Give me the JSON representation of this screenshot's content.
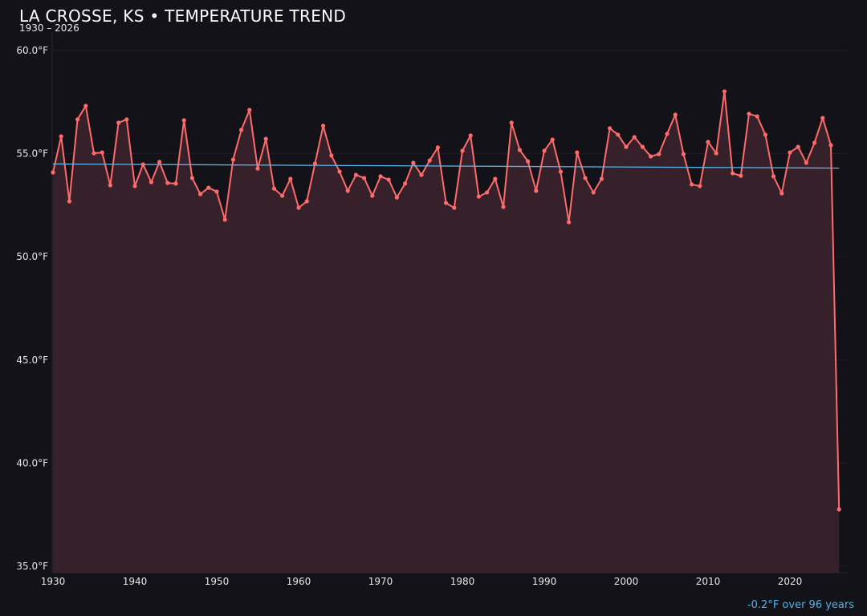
{
  "chart_data": {
    "type": "line",
    "title": "LA CROSSE, KS • TEMPERATURE TREND",
    "subtitle": "1930 – 2026",
    "xlabel": "",
    "ylabel": "",
    "xlim": [
      1930,
      2027
    ],
    "ylim": [
      34.7,
      60.9
    ],
    "grid": true,
    "x_ticks": [
      "1930",
      "1940",
      "1950",
      "1960",
      "1970",
      "1980",
      "1990",
      "2000",
      "2010",
      "2020"
    ],
    "y_ticks": [
      "35.0°F",
      "40.0°F",
      "45.0°F",
      "50.0°F",
      "55.0°F",
      "60.0°F"
    ],
    "y_tick_values": [
      35,
      40,
      45,
      50,
      55,
      60
    ],
    "series": [
      {
        "x_start": 1930,
        "color": "#ff6b6b",
        "fill": "#36202a",
        "values": [
          54.09,
          55.84,
          52.69,
          56.66,
          57.32,
          55.02,
          55.06,
          53.47,
          56.5,
          56.66,
          53.43,
          54.48,
          53.62,
          54.6,
          53.58,
          53.55,
          56.62,
          53.82,
          53.04,
          53.35,
          53.16,
          51.8,
          54.71,
          56.15,
          57.12,
          54.28,
          55.72,
          53.31,
          52.96,
          53.78,
          52.38,
          52.69,
          54.52,
          56.35,
          54.91,
          54.13,
          53.2,
          53.97,
          53.82,
          52.96,
          53.9,
          53.74,
          52.88,
          53.55,
          54.56,
          53.97,
          54.67,
          55.3,
          52.61,
          52.38,
          55.14,
          55.88,
          52.92,
          53.12,
          53.78,
          52.42,
          56.5,
          55.18,
          54.63,
          53.2,
          55.14,
          55.68,
          54.13,
          51.68,
          55.06,
          53.82,
          53.12,
          53.78,
          56.23,
          55.92,
          55.33,
          55.8,
          55.33,
          54.87,
          54.98,
          55.96,
          56.89,
          54.98,
          53.51,
          53.43,
          55.57,
          55.02,
          58.02,
          54.05,
          53.93,
          56.93,
          56.81,
          55.92,
          53.9,
          53.08,
          55.06,
          55.33,
          54.56,
          55.53,
          56.73,
          55.41,
          37.76
        ]
      }
    ],
    "trend": {
      "x": [
        1930,
        2026
      ],
      "y": [
        54.5,
        54.3
      ],
      "color": "#5ab4e8"
    },
    "annotation": "-0.2°F over 96 years"
  }
}
